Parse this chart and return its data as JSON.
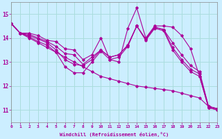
{
  "xlabel": "Windchill (Refroidissement éolien,°C)",
  "background_color": "#cceeff",
  "grid_color": "#aadddd",
  "line_color": "#aa0099",
  "xlim": [
    0,
    23
  ],
  "ylim": [
    10.5,
    15.5
  ],
  "yticks": [
    11,
    12,
    13,
    14,
    15
  ],
  "xticks": [
    0,
    1,
    2,
    3,
    4,
    5,
    6,
    7,
    8,
    9,
    10,
    11,
    12,
    13,
    14,
    15,
    16,
    17,
    18,
    19,
    20,
    21,
    22,
    23
  ],
  "series": [
    [
      14.6,
      14.2,
      14.2,
      14.1,
      13.9,
      13.85,
      13.55,
      13.5,
      13.1,
      13.3,
      14.0,
      13.1,
      13.0,
      14.4,
      15.25,
      14.0,
      14.5,
      14.5,
      14.45,
      14.1,
      13.55,
      12.4,
      11.1,
      11.0
    ],
    [
      14.6,
      14.2,
      14.15,
      14.0,
      13.85,
      13.65,
      13.35,
      13.3,
      12.9,
      13.2,
      13.5,
      13.2,
      13.3,
      13.7,
      14.5,
      13.95,
      14.45,
      14.35,
      13.8,
      13.3,
      12.85,
      12.6,
      11.15,
      11.05
    ],
    [
      14.6,
      14.2,
      14.1,
      13.95,
      13.8,
      13.5,
      13.1,
      12.9,
      12.85,
      13.1,
      13.5,
      13.2,
      13.3,
      13.7,
      14.5,
      13.95,
      14.45,
      14.35,
      13.6,
      13.1,
      12.7,
      12.5,
      11.15,
      11.05
    ],
    [
      14.6,
      14.2,
      14.05,
      13.85,
      13.7,
      13.4,
      12.8,
      12.55,
      12.55,
      13.0,
      13.45,
      13.1,
      13.2,
      13.65,
      14.5,
      13.9,
      14.4,
      14.3,
      13.5,
      13.0,
      12.6,
      12.4,
      11.1,
      11.0
    ],
    [
      14.6,
      14.2,
      14.0,
      13.8,
      13.6,
      13.4,
      13.2,
      13.0,
      12.8,
      12.6,
      12.4,
      12.3,
      12.2,
      12.1,
      12.0,
      11.95,
      11.9,
      11.85,
      11.8,
      11.7,
      11.6,
      11.5,
      11.15,
      11.05
    ]
  ]
}
